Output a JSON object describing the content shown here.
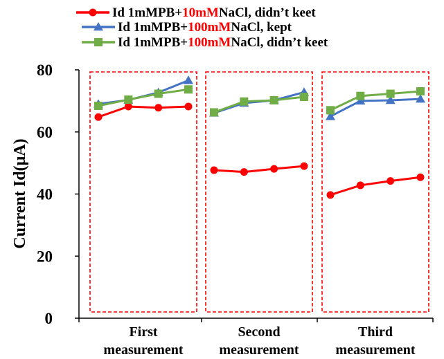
{
  "chart_data": {
    "type": "line",
    "ylabel": "Current Id(μA)",
    "ylim": [
      0,
      80
    ],
    "y_ticks": [
      "0",
      "20",
      "40",
      "60",
      "80"
    ],
    "grid": false,
    "legend_position": "top",
    "groups": [
      {
        "label_line1": "First",
        "label_line2": "measurement"
      },
      {
        "label_line1": "Second",
        "label_line2": "measurement"
      },
      {
        "label_line1": "Third",
        "label_line2": "measurement"
      }
    ],
    "points_per_group": 4,
    "series": [
      {
        "legend_parts": [
          "Id 1mMPB+",
          "10mM",
          "NaCl, didn’t keet"
        ],
        "color": "#ff0000",
        "marker": "circle",
        "groups": [
          [
            64.8,
            68.2,
            67.8,
            68.2
          ],
          [
            47.7,
            47.1,
            48.1,
            49.0
          ],
          [
            39.7,
            42.8,
            44.2,
            45.4
          ]
        ]
      },
      {
        "legend_parts": [
          "Id 1mMPB+",
          "100mM",
          "NaCl, kept"
        ],
        "color": "#4472c4",
        "marker": "triangle",
        "groups": [
          [
            69.0,
            70.3,
            72.7,
            76.6
          ],
          [
            66.1,
            69.3,
            70.2,
            72.8
          ],
          [
            65.0,
            70.0,
            70.2,
            70.6
          ]
        ]
      },
      {
        "legend_parts": [
          "Id 1mMPB+",
          "100mM",
          "NaCl, didn’t keet"
        ],
        "color": "#70ad47",
        "marker": "square",
        "groups": [
          [
            68.4,
            70.4,
            72.3,
            73.7
          ],
          [
            66.3,
            69.8,
            70.2,
            71.3
          ],
          [
            67.0,
            71.6,
            72.3,
            73.1
          ]
        ]
      }
    ],
    "group_box_color": "#ff0000"
  }
}
